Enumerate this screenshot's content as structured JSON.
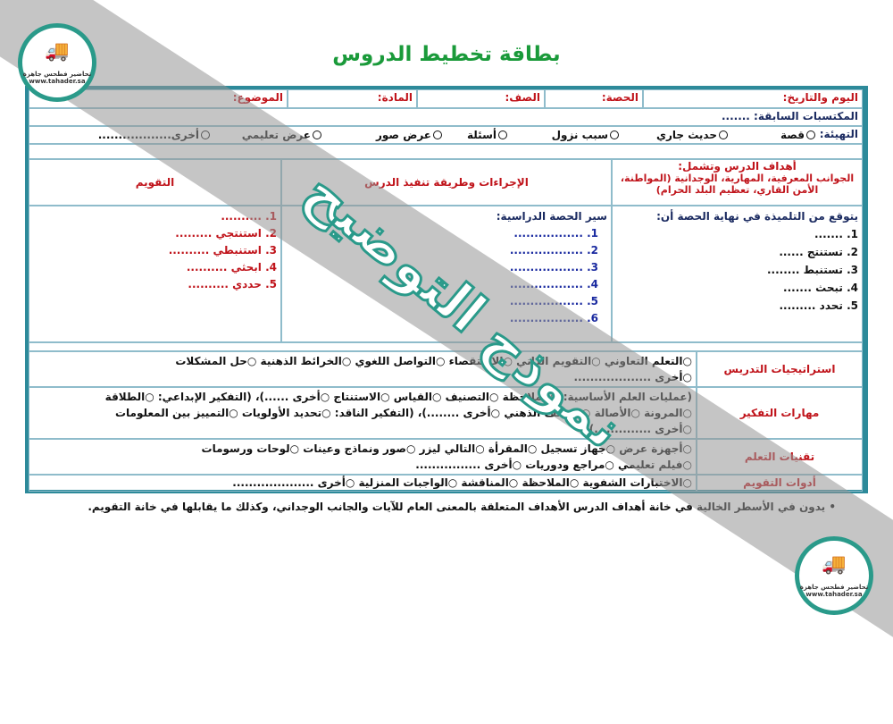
{
  "title": "بطاقة تخطيط الدروس",
  "logo": {
    "name": "تحاضير فطحس جاهزة",
    "url": "www.tahader.sa"
  },
  "watermark": "نموذج التوضيح",
  "header": {
    "date": "اليوم والتاريخ:",
    "period": "الحصة:",
    "class": "الصف:",
    "subject": "المادة:",
    "topic": "الموضوع:"
  },
  "prior": "المكتسبات السابقة: .......",
  "intro": {
    "label": "التهيئة:",
    "options": [
      "قصة",
      "حديث جاري",
      "سبب نزول",
      "أسئلة",
      "عرض صور",
      "عرض تعليمي",
      "أخرى.................."
    ]
  },
  "columns": {
    "goals_title": "أهداف الدرس وتشمل:",
    "goals_sub": "الجوانب المعرفية، المهارية، الوجدانية (المواطنة، الأمن القاري، تعظيم البلد الحرام)",
    "procedures": "الإجراءات وطريقة تنفيذ الدرس",
    "evaluation": "التقويم"
  },
  "goals": {
    "intro": "يتوقع من التلميذة في نهاية الحصة أن:",
    "items": [
      "1. .......",
      "2. تستنتج ......",
      "3. تستنبط ........",
      "4. تبحث .......",
      "5. تحدد ........."
    ]
  },
  "procedures": {
    "intro": "سير الحصة الدراسية:",
    "items": [
      "1. .................",
      "2. ..................",
      "3. ..................",
      "4. ..................",
      "5. ..................",
      "6. .................."
    ]
  },
  "evaluation": {
    "items": [
      "1. ..........",
      "2. استنتجي .........",
      "3. استنبطي ..........",
      "4. ابحثي ..........",
      "5. حددي .........."
    ]
  },
  "rows": [
    {
      "label": "استراتيجيات التدريس",
      "lines": [
        "○التعلم التعاوني   ○التقويم الذاتي   ○الاستقصاء   ○التواصل اللغوي   ○الخرائط الذهنية   ○حل المشكلات",
        "○أخرى ..................."
      ]
    },
    {
      "label": "مهارات التفكير",
      "lines": [
        "(عمليات العلم الأساسية: ○الملاحظة  ○التصنيف   ○القياس   ○الاستنتاج   ○أخرى ......)، (التفكير الإبداعي: ○الطلاقة",
        "○المرونة   ○الأصالة   ○العصف الذهني   ○أخرى ........)، (التفكير الناقد: ○تحديد الأولويات  ○التمييز بين المعلومات",
        "○أخرى ..............)."
      ]
    },
    {
      "label": "تقنيات التعلم",
      "lines": [
        "○أجهزة عرض   ○جهاز تسجيل   ○المقرأة   ○التالي ليزر  ○صور ونماذج وعينات   ○لوحات ورسومات",
        "○فيلم تعليمي   ○مراجع ودوريات   ○أخرى ................"
      ]
    },
    {
      "label": "أدوات التقويم",
      "lines": [
        "○الاختبارات الشفوية  ○الملاحظة  ○المناقشة  ○الواجبات المنزلية  ○أخرى ...................."
      ]
    }
  ],
  "note": "•  يدون في الأسطر الخالية في خانة أهداف الدرس الأهداف المتعلقة بالمعنى العام للآيات والجانب الوجداني، وكذلك ما يقابلها في خانة التقويم."
}
